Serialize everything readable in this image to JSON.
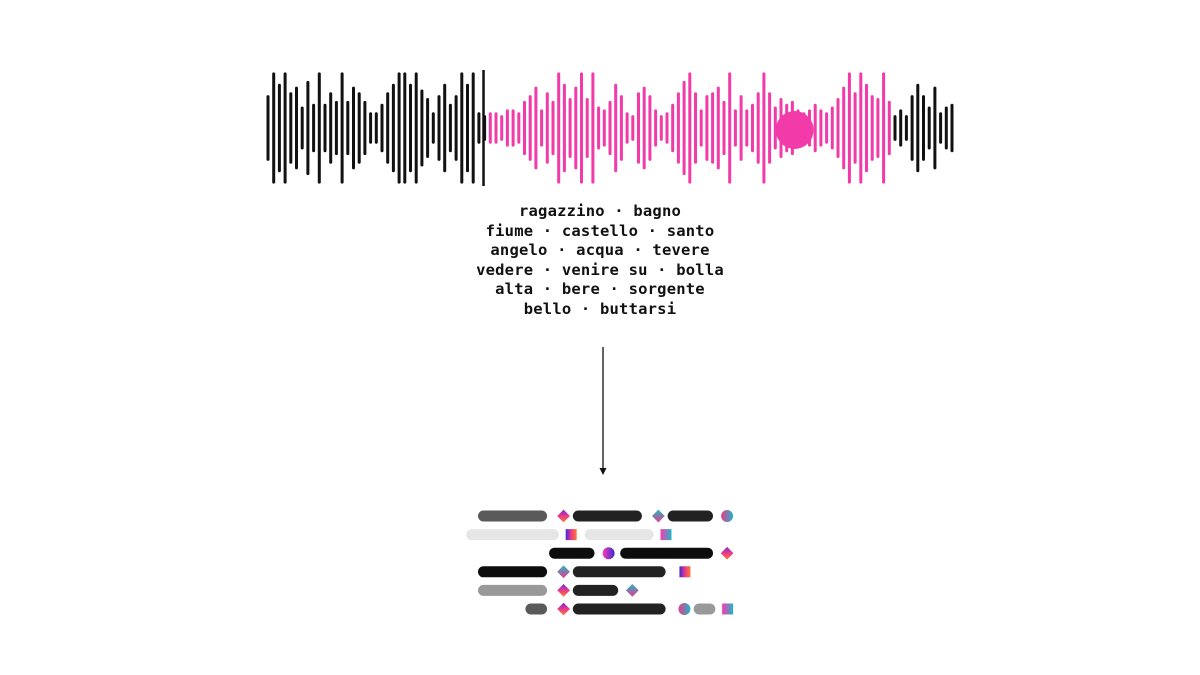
{
  "colors": {
    "background": "#ffffff",
    "wave_black": "#111111",
    "wave_pink": "#f23aa9",
    "playhead": "#111111",
    "marker": "#f23aa9",
    "text": "#111111",
    "arrow": "#111111",
    "token_dark": "#222222",
    "token_black": "#0d0d0d",
    "token_gray": "#5a5a5a",
    "token_mid": "#999999",
    "token_light": "#e6e6e6"
  },
  "words": [
    "ragazzino · bagno",
    "fiume · castello · santo",
    "angelo · acqua · tevere",
    "vedere · venire su · bolla",
    "alta · bere · sorgente",
    "bello · buttarsi"
  ],
  "waveform": {
    "bar_levels": [
      0.55,
      0.95,
      0.75,
      0.95,
      0.6,
      0.7,
      0.35,
      0.8,
      0.4,
      0.95,
      0.4,
      0.6,
      0.45,
      0.95,
      0.45,
      0.7,
      0.6,
      0.45,
      0.25,
      0.25,
      0.4,
      0.6,
      0.75,
      0.95,
      0.95,
      0.75,
      0.95,
      0.65,
      0.5,
      0.25,
      0.55,
      0.75,
      0.4,
      0.55,
      0.95,
      0.75,
      0.95,
      0.25,
      0.2,
      0.25,
      0.25,
      0.2,
      0.3,
      0.3,
      0.25,
      0.45,
      0.55,
      0.7,
      0.3,
      0.6,
      0.45,
      0.95,
      0.75,
      0.5,
      0.7,
      0.95,
      0.5,
      0.95,
      0.35,
      0.3,
      0.45,
      0.75,
      0.55,
      0.25,
      0.2,
      0.6,
      0.7,
      0.55,
      0.3,
      0.2,
      0.25,
      0.4,
      0.6,
      0.8,
      0.95,
      0.6,
      0.3,
      0.55,
      0.6,
      0.7,
      0.45,
      0.95,
      0.3,
      0.55,
      0.3,
      0.4,
      0.6,
      0.95,
      0.6,
      0.35,
      0.5,
      0.4,
      0.45,
      0.3,
      0.25,
      0.3,
      0.4,
      0.3,
      0.25,
      0.35,
      0.5,
      0.7,
      0.95,
      0.6,
      0.95,
      0.75,
      0.55,
      0.5,
      0.95,
      0.45,
      0.2,
      0.3,
      0.2,
      0.55,
      0.75,
      0.55,
      0.35,
      0.7,
      0.25,
      0.35,
      0.4
    ],
    "played_fraction": [
      0.318,
      0.91
    ],
    "marker_position": 0.77
  },
  "tokens": [
    {
      "type": "bar",
      "color": "token_gray",
      "row": 0,
      "start": 0,
      "span": 3
    },
    {
      "type": "diamond",
      "row": 0,
      "start": 3.4
    },
    {
      "type": "bar",
      "color": "token_dark",
      "row": 0,
      "start": 4,
      "span": 3
    },
    {
      "type": "diamond",
      "row": 0,
      "start": 7.4
    },
    {
      "type": "bar",
      "color": "token_dark",
      "row": 0,
      "start": 8,
      "span": 2
    },
    {
      "type": "circle",
      "row": 0,
      "start": 10.3
    },
    {
      "type": "bar",
      "color": "token_light",
      "row": 1,
      "start": -0.5,
      "span": 4
    },
    {
      "type": "square",
      "row": 1,
      "start": 3.7
    },
    {
      "type": "bar",
      "color": "token_light",
      "row": 1,
      "start": 4.5,
      "span": 3
    },
    {
      "type": "square",
      "row": 1,
      "start": 7.7
    },
    {
      "type": "bar",
      "color": "token_black",
      "row": 2,
      "start": 3,
      "span": 2
    },
    {
      "type": "circle",
      "row": 2,
      "start": 5.3
    },
    {
      "type": "bar",
      "color": "token_black",
      "row": 2,
      "start": 6,
      "span": 4
    },
    {
      "type": "diamond",
      "row": 2,
      "start": 10.3
    },
    {
      "type": "bar",
      "color": "token_black",
      "row": 3,
      "start": 0,
      "span": 3
    },
    {
      "type": "diamond",
      "row": 3,
      "start": 3.4
    },
    {
      "type": "bar",
      "color": "token_dark",
      "row": 3,
      "start": 4,
      "span": 4
    },
    {
      "type": "square",
      "row": 3,
      "start": 8.5
    },
    {
      "type": "bar",
      "color": "token_mid",
      "row": 4,
      "start": 0,
      "span": 3
    },
    {
      "type": "diamond",
      "row": 4,
      "start": 3.4
    },
    {
      "type": "bar",
      "color": "token_dark",
      "row": 4,
      "start": 4,
      "span": 2
    },
    {
      "type": "diamond",
      "row": 4,
      "start": 6.3
    },
    {
      "type": "bar",
      "color": "token_gray",
      "row": 5,
      "start": 2,
      "span": 1
    },
    {
      "type": "diamond",
      "row": 5,
      "start": 3.4
    },
    {
      "type": "bar",
      "color": "token_dark",
      "row": 5,
      "start": 4,
      "span": 4
    },
    {
      "type": "circle",
      "row": 5,
      "start": 8.5
    },
    {
      "type": "bar",
      "color": "token_mid",
      "row": 5,
      "start": 9.1,
      "span": 1
    },
    {
      "type": "square",
      "row": 5,
      "start": 10.3
    }
  ]
}
